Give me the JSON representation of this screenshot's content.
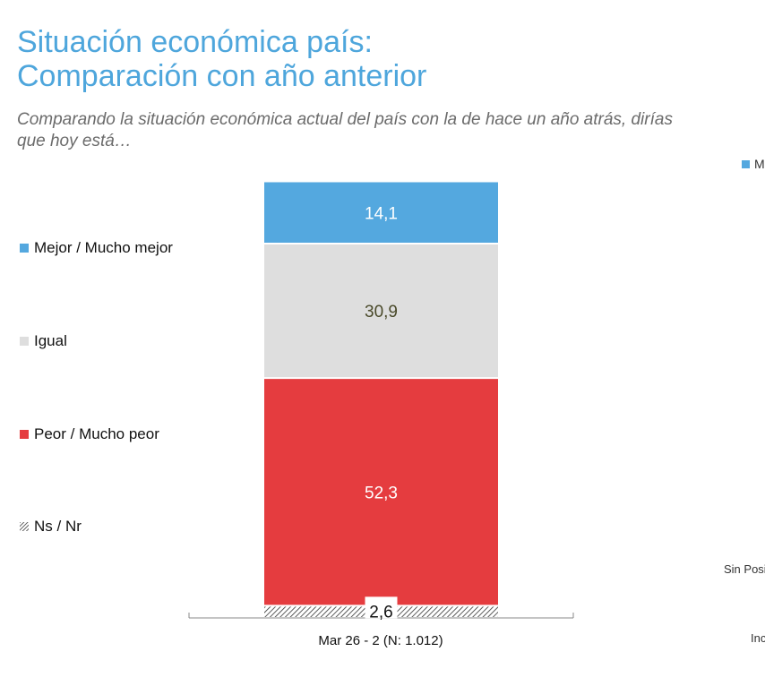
{
  "title": {
    "line1": "Situación económica país:",
    "line2": "Comparación con año anterior"
  },
  "subtitle": {
    "line1": "Comparando la situación económica actual del país con la de hace un año atrás, dirías",
    "line2": "que hoy está…"
  },
  "legend": {
    "items": [
      {
        "label": "Mejor / Mucho mejor",
        "color": "#54a8df"
      },
      {
        "label": "Igual",
        "color": "#dedede"
      },
      {
        "label": "Peor / Mucho peor",
        "color": "#e53c3f"
      },
      {
        "label": "Ns / Nr",
        "color": "hatch"
      }
    ]
  },
  "edge_cut_text": {
    "legend_fragment": "M",
    "right_label_1": "Sin Posi",
    "right_label_2": "Inc"
  },
  "chart_data": {
    "type": "bar",
    "stacked": true,
    "categories": [
      "Mar 26 - 2 (N: 1.012)"
    ],
    "series": [
      {
        "name": "Ns / Nr",
        "values": [
          2.6
        ],
        "label": "2,6",
        "color": "hatch",
        "label_color": "#111111"
      },
      {
        "name": "Peor / Mucho peor",
        "values": [
          52.3
        ],
        "label": "52,3",
        "color": "#e53c3f",
        "label_color": "#ffffff"
      },
      {
        "name": "Igual",
        "values": [
          30.9
        ],
        "label": "30,9",
        "color": "#dedede",
        "label_color": "#4a4a2a"
      },
      {
        "name": "Mejor / Mucho mejor",
        "values": [
          14.1
        ],
        "label": "14,1",
        "color": "#54a8df",
        "label_color": "#ffffff"
      }
    ],
    "ylim": [
      0,
      100
    ]
  }
}
